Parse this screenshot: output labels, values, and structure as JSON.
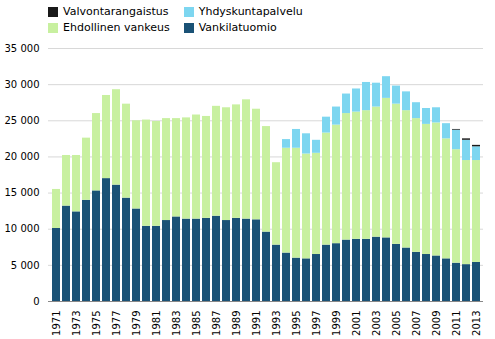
{
  "chart_data": {
    "type": "bar",
    "stacked": true,
    "categories": [
      "1971",
      null,
      "1973",
      null,
      "1975",
      null,
      "1977",
      null,
      "1979",
      null,
      "1981",
      null,
      "1983",
      null,
      "1985",
      null,
      "1987",
      null,
      "1989",
      null,
      "1991",
      null,
      "1993",
      null,
      "1995",
      null,
      "1997",
      null,
      "1999",
      null,
      "2001",
      null,
      "2003",
      null,
      "2005",
      null,
      "2007",
      null,
      "2009",
      null,
      "2011",
      null,
      "2013"
    ],
    "series": [
      {
        "name": "Vankilatuomio",
        "color": "#1a5276",
        "values": [
          10100,
          13200,
          12400,
          14000,
          15300,
          17000,
          16100,
          14300,
          12800,
          10400,
          10400,
          11200,
          11700,
          11400,
          11400,
          11500,
          11800,
          11200,
          11500,
          11400,
          11300,
          9600,
          7800,
          6700,
          6000,
          5900,
          6500,
          7800,
          8000,
          8500,
          8600,
          8600,
          8900,
          8800,
          7900,
          7400,
          6800,
          6500,
          6300,
          5900,
          5300,
          5100,
          5400
        ]
      },
      {
        "name": "Ehdollinen vankeus",
        "color": "#c8f0a0",
        "values": [
          5400,
          7000,
          7800,
          8600,
          10700,
          11500,
          13200,
          13000,
          12200,
          14700,
          14500,
          14100,
          13600,
          14000,
          14400,
          14100,
          15200,
          15600,
          15700,
          16500,
          15300,
          14600,
          11400,
          14500,
          15200,
          14500,
          14000,
          15500,
          16400,
          17500,
          17600,
          17800,
          18000,
          19300,
          19400,
          19000,
          18500,
          18000,
          18400,
          16600,
          15700,
          14400,
          14100
        ]
      },
      {
        "name": "Yhdyskuntapalvelu",
        "color": "#7dd6f0",
        "values": [
          0,
          0,
          0,
          0,
          0,
          0,
          0,
          0,
          0,
          0,
          0,
          0,
          0,
          0,
          0,
          0,
          0,
          0,
          0,
          0,
          0,
          0,
          0,
          1200,
          2600,
          2800,
          1800,
          2200,
          2500,
          2700,
          3200,
          3900,
          3300,
          3000,
          2500,
          2600,
          2200,
          2200,
          2100,
          2100,
          2700,
          2800,
          1900
        ]
      },
      {
        "name": "Valvontarangaistus",
        "color": "#1a1a1a",
        "values": [
          0,
          0,
          0,
          0,
          0,
          0,
          0,
          0,
          0,
          0,
          0,
          0,
          0,
          0,
          0,
          0,
          0,
          0,
          0,
          0,
          0,
          0,
          0,
          0,
          0,
          0,
          0,
          0,
          0,
          0,
          0,
          0,
          0,
          0,
          0,
          0,
          0,
          0,
          0,
          0,
          100,
          200,
          200
        ]
      }
    ],
    "ylim": [
      0,
      35000
    ],
    "yticks": [
      0,
      {
        "value": 5000,
        "label": "5 000"
      },
      {
        "value": 10000,
        "label": "10 000"
      },
      {
        "value": 15000,
        "label": "15 000"
      },
      {
        "value": 20000,
        "label": "20 000"
      },
      {
        "value": 25000,
        "label": "25 000"
      },
      {
        "value": 30000,
        "label": "30 000"
      },
      {
        "value": 35000,
        "label": "35 000"
      }
    ],
    "grid": true,
    "legend": "upper left"
  }
}
